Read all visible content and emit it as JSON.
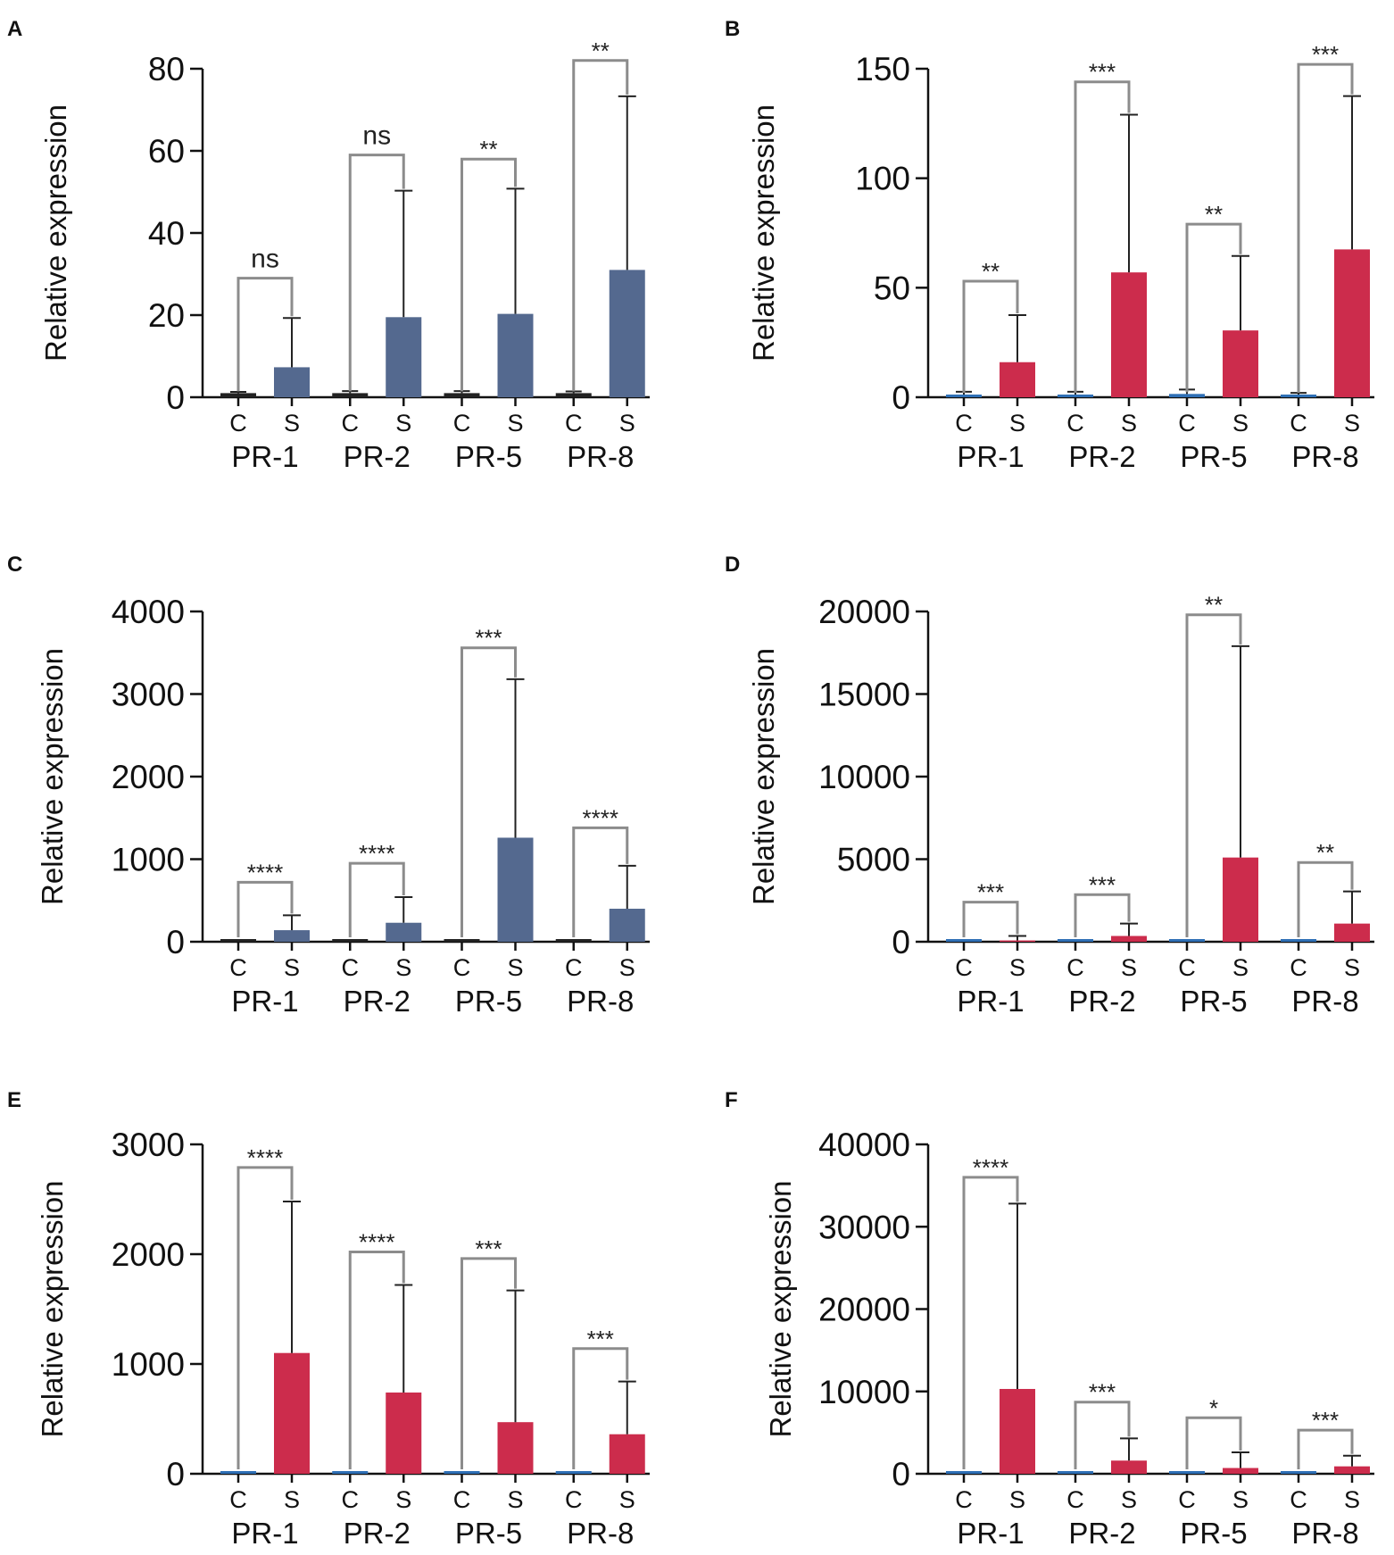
{
  "figure": {
    "ylabel": "Relative expression",
    "group_label_control": "C",
    "group_label_sample": "S",
    "colors": {
      "blue": "#54698f",
      "red": "#cc2c4c",
      "control_blue": "#2e6fb5",
      "control_black": "#222222",
      "bracket": "#8c8c8c",
      "axis": "#111111"
    }
  },
  "chart_data": [
    {
      "panel": "A",
      "type": "bar",
      "title": "",
      "xlabel": "",
      "ylabel": "Relative expression",
      "ylim": [
        0,
        80
      ],
      "yticks": [
        "0",
        "20",
        "40",
        "60",
        "80"
      ],
      "categories": [
        "PR-1",
        "PR-2",
        "PR-5",
        "PR-8"
      ],
      "bar_color": "#54698f",
      "control_color": "#222222",
      "series": [
        {
          "name": "C",
          "values": [
            1,
            1,
            1,
            1
          ],
          "error": [
            0.3,
            0.5,
            0.5,
            0.4
          ]
        },
        {
          "name": "S",
          "values": [
            7.3,
            19.5,
            20.3,
            31
          ],
          "error": [
            12,
            30.8,
            30.5,
            42.3
          ]
        }
      ],
      "significance": [
        "ns",
        "ns",
        "**",
        "**"
      ],
      "bracket_height": [
        29,
        59,
        58,
        82
      ]
    },
    {
      "panel": "B",
      "type": "bar",
      "title": "",
      "xlabel": "",
      "ylabel": "Relative expression",
      "ylim": [
        0,
        150
      ],
      "yticks": [
        "0",
        "50",
        "100",
        "150"
      ],
      "categories": [
        "PR-1",
        "PR-2",
        "PR-5",
        "PR-8"
      ],
      "bar_color": "#cc2c4c",
      "control_color": "#2e6fb5",
      "series": [
        {
          "name": "C",
          "values": [
            1,
            1,
            1.5,
            1
          ],
          "error": [
            1.5,
            1.5,
            2,
            1
          ]
        },
        {
          "name": "S",
          "values": [
            16,
            57,
            30.5,
            67.5
          ],
          "error": [
            21.5,
            72,
            34,
            70
          ]
        }
      ],
      "significance": [
        "**",
        "***",
        "**",
        "***"
      ],
      "bracket_height": [
        53,
        144,
        79,
        152
      ]
    },
    {
      "panel": "C",
      "type": "bar",
      "title": "",
      "xlabel": "",
      "ylabel": "Relative expression",
      "ylim": [
        0,
        4000
      ],
      "yticks": [
        "0",
        "1000",
        "2000",
        "3000",
        "4000"
      ],
      "categories": [
        "PR-1",
        "PR-2",
        "PR-5",
        "PR-8"
      ],
      "bar_color": "#54698f",
      "control_color": "#222222",
      "series": [
        {
          "name": "C",
          "values": [
            1,
            1,
            1,
            1
          ],
          "error": [
            0,
            0,
            0,
            0
          ]
        },
        {
          "name": "S",
          "values": [
            140,
            230,
            1260,
            400
          ],
          "error": [
            180,
            310,
            1920,
            520
          ]
        }
      ],
      "significance": [
        "****",
        "****",
        "***",
        "****"
      ],
      "bracket_height": [
        720,
        950,
        3560,
        1380
      ]
    },
    {
      "panel": "D",
      "type": "bar",
      "title": "",
      "xlabel": "",
      "ylabel": "Relative expression",
      "ylim": [
        0,
        20000
      ],
      "yticks": [
        "0",
        "5000",
        "10000",
        "15000",
        "20000"
      ],
      "categories": [
        "PR-1",
        "PR-2",
        "PR-5",
        "PR-8"
      ],
      "bar_color": "#cc2c4c",
      "control_color": "#2e6fb5",
      "series": [
        {
          "name": "C",
          "values": [
            1,
            1,
            1,
            1
          ],
          "error": [
            0,
            0,
            0,
            0
          ]
        },
        {
          "name": "S",
          "values": [
            80,
            350,
            5100,
            1100
          ],
          "error": [
            270,
            750,
            12800,
            1950
          ]
        }
      ],
      "significance": [
        "***",
        "***",
        "**",
        "**"
      ],
      "bracket_height": [
        2400,
        2850,
        19800,
        4800
      ]
    },
    {
      "panel": "E",
      "type": "bar",
      "title": "",
      "xlabel": "",
      "ylabel": "Relative expression",
      "ylim": [
        0,
        3000
      ],
      "yticks": [
        "0",
        "1000",
        "2000",
        "3000"
      ],
      "categories": [
        "PR-1",
        "PR-2",
        "PR-5",
        "PR-8"
      ],
      "bar_color": "#cc2c4c",
      "control_color": "#2e6fb5",
      "series": [
        {
          "name": "C",
          "values": [
            1,
            1,
            1,
            1
          ],
          "error": [
            0,
            0,
            0,
            0
          ]
        },
        {
          "name": "S",
          "values": [
            1100,
            740,
            470,
            360
          ],
          "error": [
            1380,
            980,
            1200,
            480
          ]
        }
      ],
      "significance": [
        "****",
        "****",
        "***",
        "***"
      ],
      "bracket_height": [
        2790,
        2020,
        1960,
        1140
      ]
    },
    {
      "panel": "F",
      "type": "bar",
      "title": "",
      "xlabel": "",
      "ylabel": "Relative expression",
      "ylim": [
        0,
        40000
      ],
      "yticks": [
        "0",
        "10000",
        "20000",
        "30000",
        "40000"
      ],
      "categories": [
        "PR-1",
        "PR-2",
        "PR-5",
        "PR-8"
      ],
      "bar_color": "#cc2c4c",
      "control_color": "#2e6fb5",
      "series": [
        {
          "name": "C",
          "values": [
            1,
            1,
            1,
            1
          ],
          "error": [
            0,
            0,
            0,
            0
          ]
        },
        {
          "name": "S",
          "values": [
            10300,
            1600,
            700,
            900
          ],
          "error": [
            22500,
            2700,
            1900,
            1300
          ]
        }
      ],
      "significance": [
        "****",
        "***",
        "*",
        "***"
      ],
      "bracket_height": [
        36000,
        8700,
        6800,
        5300
      ]
    }
  ]
}
